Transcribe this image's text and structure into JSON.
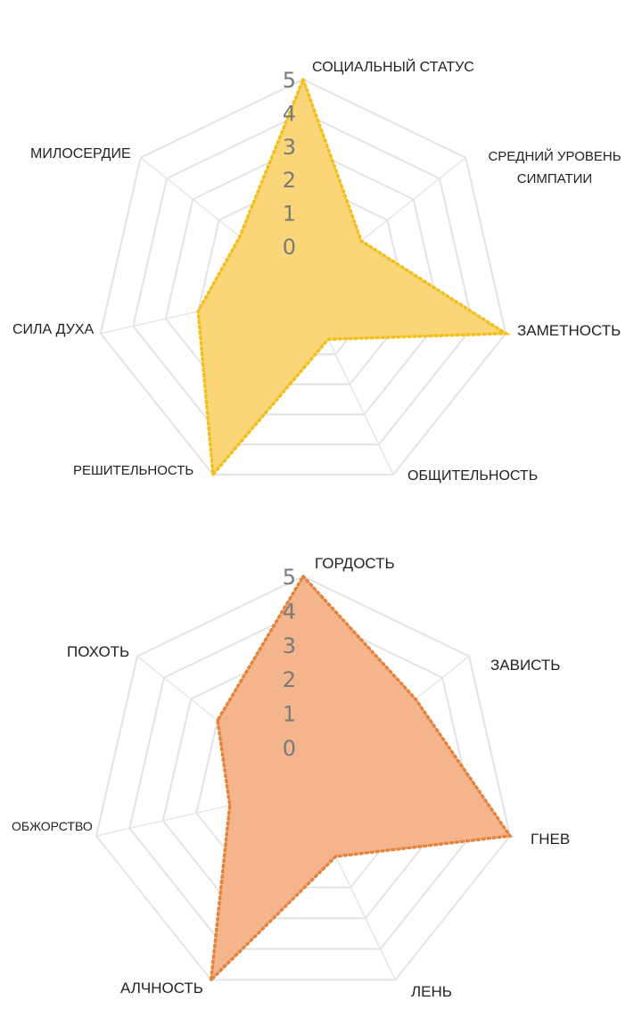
{
  "chart_data": [
    {
      "type": "radar",
      "categories": [
        "СОЦИАЛЬНЫЙ СТАТУС",
        "СРЕДНИЙ УРОВЕНЬ СИМПАТИИ",
        "ЗАМЕТНОСТЬ",
        "ОБЩИТЕЛЬНОСТЬ",
        "РЕШИТЕЛЬНОСТЬ",
        "СИЛА ДУХА",
        "МИЛОСЕРДИЕ"
      ],
      "values": [
        5,
        1,
        5,
        0.5,
        5,
        2,
        1.2
      ],
      "rlim": [
        0,
        5
      ],
      "ticks": [
        "0",
        "1",
        "2",
        "3",
        "4",
        "5"
      ],
      "fill_color": "#fad678",
      "line_color": "#f2bf1c"
    },
    {
      "type": "radar",
      "categories": [
        "ГОРДОСТЬ",
        "ЗАВИСТЬ",
        "ГНЕВ",
        "ЛЕНЬ",
        "АЛЧНОСТЬ",
        "ОБЖОРСТВО",
        "ПОХОТЬ"
      ],
      "values": [
        5,
        3,
        5,
        1,
        5,
        1,
        2
      ],
      "rlim": [
        0,
        5
      ],
      "ticks": [
        "0",
        "1",
        "2",
        "3",
        "4",
        "5"
      ],
      "fill_color": "#f4b48c",
      "line_color": "#e4843c"
    }
  ]
}
